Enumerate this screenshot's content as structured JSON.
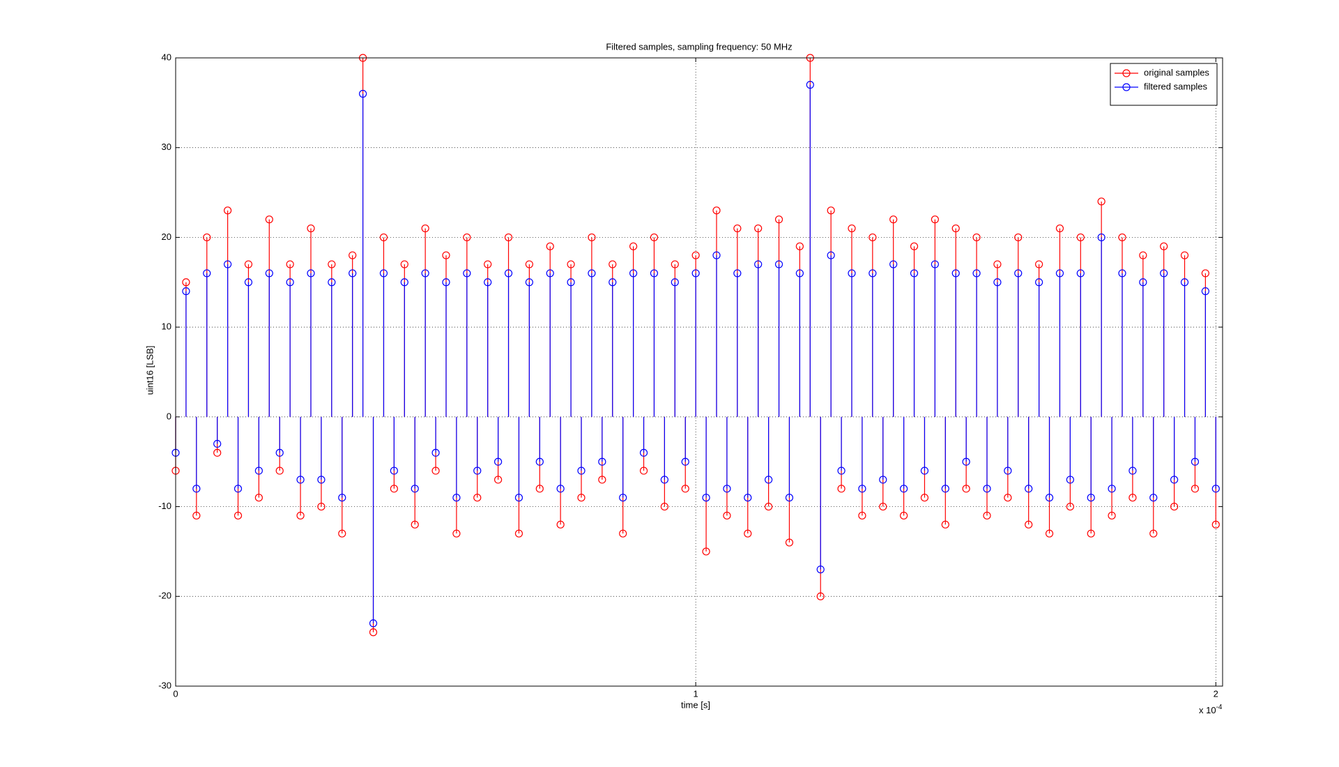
{
  "chart_data": {
    "type": "stem",
    "title": "Filtered samples, sampling frequency: 50 MHz",
    "x_label": "time [s]",
    "y_label": "uint16 [LSB]",
    "x_multiplier": {
      "base": "x 10",
      "exponent": "-4"
    },
    "xlim": [
      0,
      2.013
    ],
    "xticks": [
      0,
      1,
      2
    ],
    "ylim": [
      -30,
      40
    ],
    "yticks": [
      -30,
      -20,
      -10,
      0,
      10,
      20,
      30,
      40
    ],
    "grid": true,
    "legend": "upper right",
    "x": [
      0,
      0.02,
      0.04,
      0.06,
      0.08,
      0.1,
      0.12,
      0.14,
      0.16,
      0.18,
      0.2,
      0.22,
      0.24,
      0.26,
      0.28,
      0.3,
      0.32,
      0.34,
      0.36,
      0.38,
      0.4,
      0.42,
      0.44,
      0.46,
      0.48,
      0.5,
      0.52,
      0.54,
      0.56,
      0.58,
      0.6,
      0.62,
      0.64,
      0.66,
      0.68,
      0.7,
      0.72,
      0.74,
      0.76,
      0.78,
      0.8,
      0.82,
      0.84,
      0.86,
      0.88,
      0.9,
      0.92,
      0.94,
      0.96,
      0.98,
      1,
      1.02,
      1.04,
      1.06,
      1.08,
      1.1,
      1.12,
      1.14,
      1.16,
      1.18,
      1.2,
      1.22,
      1.24,
      1.26,
      1.28,
      1.3,
      1.32,
      1.34,
      1.36,
      1.38,
      1.4,
      1.42,
      1.44,
      1.46,
      1.48,
      1.5,
      1.52,
      1.54,
      1.56,
      1.58,
      1.6,
      1.62,
      1.64,
      1.66,
      1.68,
      1.7,
      1.72,
      1.74,
      1.76,
      1.78,
      1.8,
      1.82,
      1.84,
      1.86,
      1.88,
      1.9,
      1.92,
      1.94,
      1.96,
      1.98,
      2
    ],
    "series": [
      {
        "name": "original samples",
        "color": "#ff0000",
        "values": [
          -6,
          15,
          -11,
          20,
          -4,
          23,
          -11,
          17,
          -9,
          22,
          -6,
          17,
          -11,
          21,
          -10,
          17,
          -13,
          18,
          40,
          -24,
          20,
          -8,
          17,
          -12,
          21,
          -6,
          18,
          -13,
          20,
          -9,
          17,
          -7,
          20,
          -13,
          17,
          -8,
          19,
          -12,
          17,
          -9,
          20,
          -7,
          17,
          -13,
          19,
          -6,
          20,
          -10,
          17,
          -8,
          18,
          -15,
          23,
          -11,
          21,
          -13,
          21,
          -10,
          22,
          -14,
          19,
          40,
          -20,
          23,
          -8,
          21,
          -11,
          20,
          -10,
          22,
          -11,
          19,
          -9,
          22,
          -12,
          21,
          -8,
          20,
          -11,
          17,
          -9,
          20,
          -12,
          17,
          -13,
          21,
          -10,
          20,
          -13,
          24,
          -11,
          20,
          -9,
          18,
          -13,
          19,
          -10,
          18,
          -8,
          16,
          -12
        ]
      },
      {
        "name": "filtered samples",
        "color": "#0000ff",
        "values": [
          -4,
          14,
          -8,
          16,
          -3,
          17,
          -8,
          15,
          -6,
          16,
          -4,
          15,
          -7,
          16,
          -7,
          15,
          -9,
          16,
          36,
          -23,
          16,
          -6,
          15,
          -8,
          16,
          -4,
          15,
          -9,
          16,
          -6,
          15,
          -5,
          16,
          -9,
          15,
          -5,
          16,
          -8,
          15,
          -6,
          16,
          -5,
          15,
          -9,
          16,
          -4,
          16,
          -7,
          15,
          -5,
          16,
          -9,
          18,
          -8,
          16,
          -9,
          17,
          -7,
          17,
          -9,
          16,
          37,
          -17,
          18,
          -6,
          16,
          -8,
          16,
          -7,
          17,
          -8,
          16,
          -6,
          17,
          -8,
          16,
          -5,
          16,
          -8,
          15,
          -6,
          16,
          -8,
          15,
          -9,
          16,
          -7,
          16,
          -9,
          20,
          -8,
          16,
          -6,
          15,
          -9,
          16,
          -7,
          15,
          -5,
          14,
          -8
        ]
      }
    ]
  }
}
